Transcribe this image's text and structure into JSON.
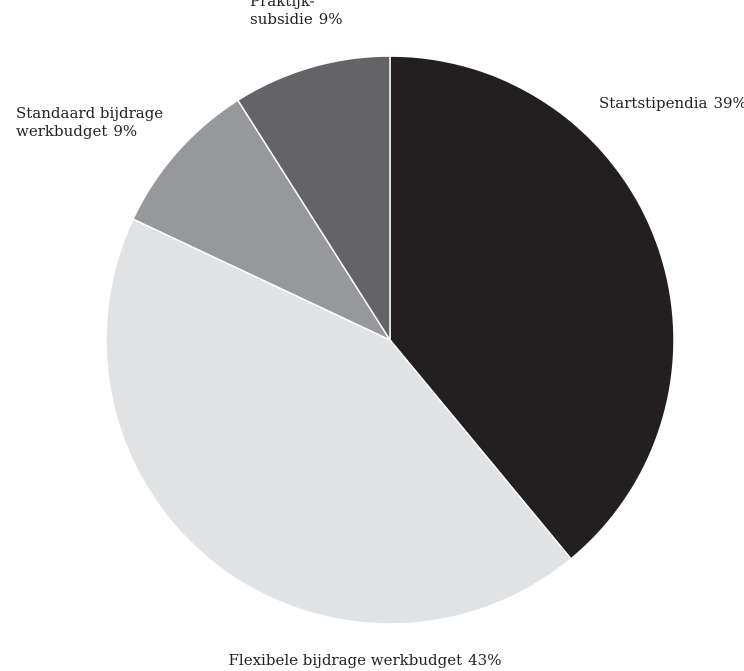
{
  "chart_data": {
    "type": "pie",
    "title": "",
    "slices": [
      {
        "label": "Startstipendia",
        "lines": [
          "Startstipendia"
        ],
        "value": 39,
        "value_label": "39%",
        "color": "#231f20"
      },
      {
        "label": "Flexibele bijdrage werkbudget",
        "lines": [
          "Flexibele bijdrage werkbudget"
        ],
        "value": 43,
        "value_label": "43%",
        "color": "#e1e2e3"
      },
      {
        "label": "Standaard bijdrage werkbudget",
        "lines": [
          "Standaard bijdrage",
          "werkbudget"
        ],
        "value": 9,
        "value_label": "9%",
        "color": "#97989b"
      },
      {
        "label": "Praktijk-subsidie",
        "lines": [
          "Praktijk-",
          "subsidie"
        ],
        "value": 9,
        "value_label": "9%",
        "color": "#646466"
      }
    ],
    "start_angle_deg": 0,
    "direction": "clockwise",
    "legend": "none"
  }
}
